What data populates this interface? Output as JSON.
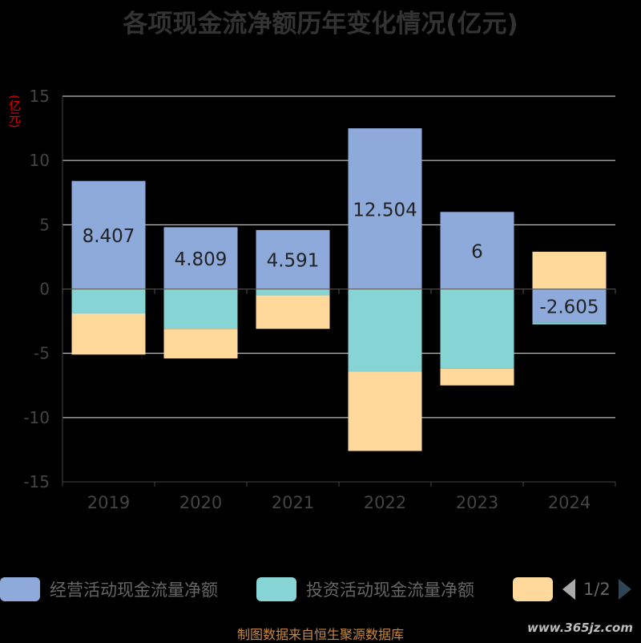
{
  "title": "各项现金流净额历年变化情况(亿元)",
  "unit_label": "(亿元)",
  "source": "制图数据来自恒生聚源数据库",
  "watermark": "www.365jz.com",
  "legend": {
    "items": [
      {
        "label": "经营活动现金流量净额",
        "color": "#8eaadb"
      },
      {
        "label": "投资活动现金流量净额",
        "color": "#86d4d4"
      },
      {
        "label": "",
        "color": "#ffd89c"
      }
    ],
    "page": "1/2"
  },
  "chart_data": {
    "type": "bar",
    "stacked": true,
    "categories": [
      "2019",
      "2020",
      "2021",
      "2022",
      "2023",
      "2024"
    ],
    "ylim": [
      -15,
      15
    ],
    "yticks": [
      -15,
      -10,
      -5,
      0,
      5,
      10,
      15
    ],
    "grid": true,
    "series": [
      {
        "name": "经营活动现金流量净额",
        "color": "#8eaadb",
        "values": [
          8.407,
          4.809,
          4.591,
          12.504,
          6,
          -2.605
        ],
        "labels": [
          "8.407",
          "4.809",
          "4.591",
          "12.504",
          "6",
          "-2.605"
        ]
      },
      {
        "name": "投资活动现金流量净额",
        "color": "#86d4d4",
        "values": [
          -1.9,
          -3.1,
          -0.5,
          -6.4,
          -6.2,
          -0.15
        ]
      },
      {
        "name": "",
        "color": "#ffd89c",
        "values": [
          -3.2,
          -2.3,
          -2.6,
          -6.2,
          -1.3,
          2.9
        ]
      }
    ]
  }
}
